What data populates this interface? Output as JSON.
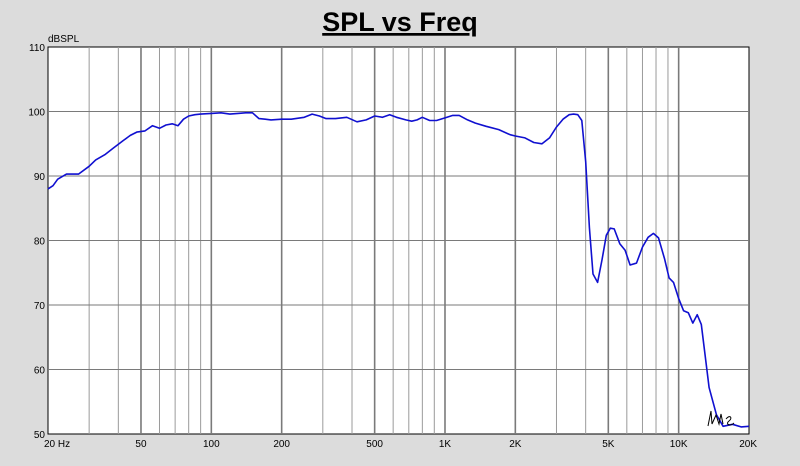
{
  "chart_data": {
    "type": "line",
    "title": "SPL vs Freq",
    "ylabel": "dBSPL",
    "xlabel": "",
    "xscale": "log",
    "xlim": [
      20,
      20000
    ],
    "ylim": [
      50,
      110
    ],
    "yticks": [
      "50",
      "60",
      "70",
      "80",
      "90",
      "100",
      "110"
    ],
    "xtick_labels": [
      {
        "value": 20,
        "label": "20  Hz"
      },
      {
        "value": 50,
        "label": "50"
      },
      {
        "value": 100,
        "label": "100"
      },
      {
        "value": 200,
        "label": "200"
      },
      {
        "value": 500,
        "label": "500"
      },
      {
        "value": 1000,
        "label": "1K"
      },
      {
        "value": 2000,
        "label": "2K"
      },
      {
        "value": 5000,
        "label": "5K"
      },
      {
        "value": 10000,
        "label": "10K"
      },
      {
        "value": 20000,
        "label": "20K"
      }
    ],
    "grid": true,
    "colors": {
      "line": "#1010d0",
      "plot_bg": "#ffffff",
      "page_bg": "#dcdcdc",
      "grid_major": "#7a7a7a",
      "grid_minor": "#9a9a9a"
    },
    "series": [
      {
        "x": [
          20,
          21,
          22,
          24,
          27,
          30,
          32,
          35,
          38,
          42,
          45,
          48,
          52,
          56,
          60,
          64,
          68,
          72,
          76,
          80,
          85,
          90,
          100,
          110,
          120,
          130,
          140,
          150,
          160,
          170,
          180,
          200,
          220,
          250,
          270,
          290,
          310,
          340,
          380,
          420,
          460,
          500,
          540,
          580,
          620,
          680,
          720,
          760,
          800,
          860,
          920,
          1000,
          1080,
          1150,
          1250,
          1350,
          1500,
          1700,
          1900,
          2000,
          2200,
          2400,
          2600,
          2800,
          3000,
          3200,
          3400,
          3550,
          3700,
          3850,
          4000,
          4150,
          4300,
          4500,
          4700,
          4900,
          5100,
          5300,
          5600,
          5900,
          6200,
          6600,
          7000,
          7400,
          7800,
          8200,
          8700,
          9100,
          9500,
          10000,
          10500,
          11000,
          11500,
          12000,
          12500,
          13500,
          14500,
          15500,
          17000,
          18500,
          20000
        ],
        "y": [
          88,
          88.5,
          89.5,
          90.3,
          90.3,
          91.5,
          92.5,
          93.3,
          94.3,
          95.5,
          96.3,
          96.8,
          97,
          97.8,
          97.4,
          97.9,
          98.1,
          97.8,
          98.8,
          99.3,
          99.5,
          99.6,
          99.7,
          99.8,
          99.6,
          99.7,
          99.8,
          99.8,
          98.9,
          98.8,
          98.7,
          98.8,
          98.8,
          99.1,
          99.6,
          99.3,
          98.9,
          98.9,
          99.1,
          98.4,
          98.7,
          99.3,
          99.1,
          99.5,
          99.1,
          98.7,
          98.5,
          98.7,
          99.1,
          98.6,
          98.6,
          99,
          99.4,
          99.4,
          98.7,
          98.2,
          97.7,
          97.2,
          96.4,
          96.2,
          95.9,
          95.2,
          95,
          95.9,
          97.6,
          98.8,
          99.5,
          99.6,
          99.5,
          98.6,
          92.2,
          82,
          74.8,
          73.5,
          77,
          80.8,
          81.9,
          81.8,
          79.5,
          78.5,
          76.2,
          76.5,
          79,
          80.5,
          81.1,
          80.4,
          77.2,
          74.2,
          73.5,
          71,
          69.1,
          68.8,
          67.2,
          68.5,
          67,
          57.2,
          53,
          51.2,
          51.5,
          51.1,
          51.2
        ],
        "note": ""
      }
    ]
  },
  "signature": "LMS"
}
